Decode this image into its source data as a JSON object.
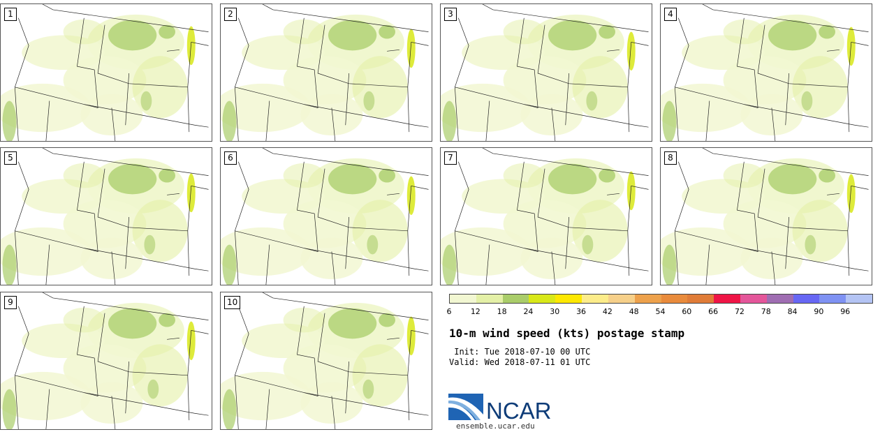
{
  "panels": [
    {
      "label": "1"
    },
    {
      "label": "2"
    },
    {
      "label": "3"
    },
    {
      "label": "4"
    },
    {
      "label": "5"
    },
    {
      "label": "6"
    },
    {
      "label": "7"
    },
    {
      "label": "8"
    },
    {
      "label": "9"
    },
    {
      "label": "10"
    }
  ],
  "colorbar": {
    "colors": [
      "#f2f7d2",
      "#e4f0a7",
      "#aacd6a",
      "#d8e819",
      "#fde802",
      "#fcec8a",
      "#f6d08a",
      "#eda14c",
      "#e98b3c",
      "#e07c38",
      "#ef1546",
      "#e4569a",
      "#9f6db2",
      "#6767f4",
      "#7f92f3",
      "#b4c4f4"
    ],
    "ticks": [
      "6",
      "12",
      "18",
      "24",
      "30",
      "36",
      "42",
      "48",
      "54",
      "60",
      "66",
      "72",
      "78",
      "84",
      "90",
      "96"
    ]
  },
  "title": "10-m wind speed (kts) postage stamp",
  "init": " Init: Tue 2018-07-10 00 UTC",
  "valid": "Valid: Wed 2018-07-11 01 UTC",
  "logo": {
    "text": "NCAR",
    "url": "ensemble.ucar.edu"
  }
}
